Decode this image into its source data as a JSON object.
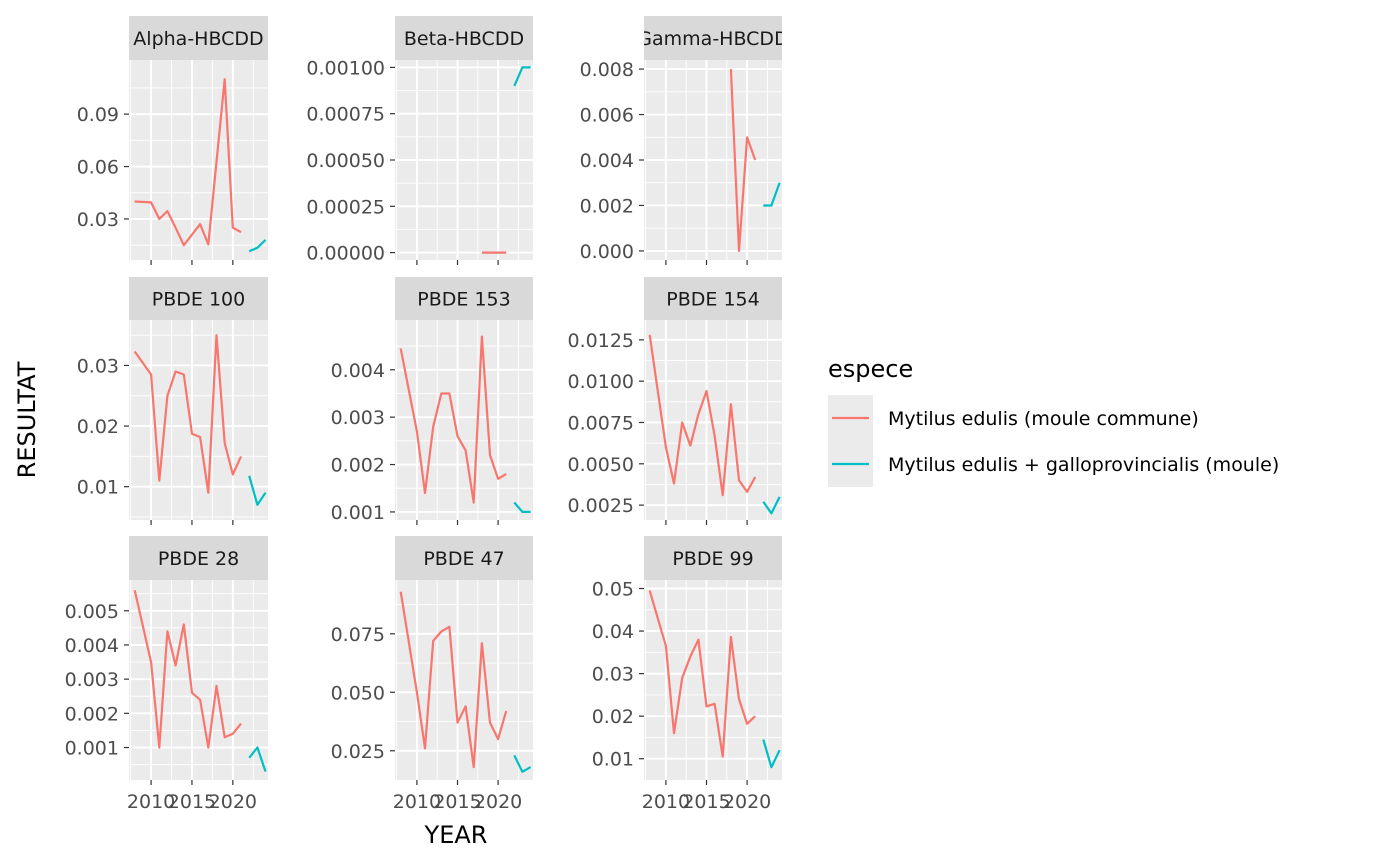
{
  "colors": {
    "series_1": "#F8766D",
    "series_2": "#00BFC4",
    "panel_bg": "#EBEBEB",
    "strip_bg": "#D9D9D9",
    "grid": "#FFFFFF"
  },
  "chart_data": {
    "type": "line",
    "xlabel": "YEAR",
    "ylabel": "RESULTAT",
    "x_ticks": [
      2010,
      2015,
      2020
    ],
    "xlim": [
      2007.3,
      2024.3
    ],
    "legend": {
      "title": "espece",
      "position": "right",
      "entries": [
        "Mytilus edulis (moule commune)",
        "Mytilus edulis + galloprovincialis (moule)"
      ]
    },
    "facet_scales": "free_y",
    "panels": [
      {
        "title": "Alpha-HBCDD",
        "ylim": [
          0.0065,
          0.121
        ],
        "y_ticks": [
          0.03,
          0.06,
          0.09
        ],
        "y_tick_labels": [
          "0.03",
          "0.06",
          "0.09"
        ],
        "series": [
          {
            "name": "Mytilus edulis (moule commune)",
            "x": [
              2008,
              2010,
              2011,
              2012,
              2013,
              2014,
              2016,
              2017,
              2019,
              2020,
              2021
            ],
            "y": [
              0.04,
              0.0395,
              0.03,
              0.0345,
              0.025,
              0.015,
              0.027,
              0.0155,
              0.11,
              0.025,
              0.0225
            ]
          },
          {
            "name": "Mytilus edulis + galloprovincialis (moule)",
            "x": [
              2022,
              2023,
              2024
            ],
            "y": [
              0.0115,
              0.0135,
              0.018
            ]
          }
        ]
      },
      {
        "title": "Beta-HBCDD",
        "ylim": [
          -4e-05,
          0.00104
        ],
        "y_ticks": [
          0,
          0.00025,
          0.0005,
          0.00075,
          0.001
        ],
        "y_tick_labels": [
          "0.00000",
          "0.00025",
          "0.00050",
          "0.00075",
          "0.00100"
        ],
        "series": [
          {
            "name": "Mytilus edulis (moule commune)",
            "x": [
              2018,
              2019,
              2020,
              2021
            ],
            "y": [
              0,
              0,
              0,
              0
            ]
          },
          {
            "name": "Mytilus edulis + galloprovincialis (moule)",
            "x": [
              2022,
              2023,
              2024
            ],
            "y": [
              0.0009,
              0.001,
              0.001
            ]
          }
        ]
      },
      {
        "title": "Gamma-HBCDD",
        "ylim": [
          -0.0004,
          0.0084
        ],
        "y_ticks": [
          0,
          0.002,
          0.004,
          0.006,
          0.008
        ],
        "y_tick_labels": [
          "0.000",
          "0.002",
          "0.004",
          "0.006",
          "0.008"
        ],
        "series": [
          {
            "name": "Mytilus edulis (moule commune)",
            "x": [
              2018,
              2019,
              2020,
              2021
            ],
            "y": [
              0.008,
              0,
              0.005,
              0.004
            ]
          },
          {
            "name": "Mytilus edulis + galloprovincialis (moule)",
            "x": [
              2022,
              2023,
              2024
            ],
            "y": [
              0.002,
              0.002,
              0.003
            ]
          }
        ]
      },
      {
        "title": "PBDE 100",
        "ylim": [
          0.0045,
          0.0375
        ],
        "y_ticks": [
          0.01,
          0.02,
          0.03
        ],
        "y_tick_labels": [
          "0.01",
          "0.02",
          "0.03"
        ],
        "series": [
          {
            "name": "Mytilus edulis (moule commune)",
            "x": [
              2008,
              2010,
              2011,
              2012,
              2013,
              2014,
              2015,
              2016,
              2017,
              2018,
              2019,
              2020,
              2021
            ],
            "y": [
              0.0323,
              0.0285,
              0.011,
              0.025,
              0.029,
              0.0285,
              0.0187,
              0.0182,
              0.009,
              0.035,
              0.0172,
              0.012,
              0.015
            ]
          },
          {
            "name": "Mytilus edulis + galloprovincialis (moule)",
            "x": [
              2022,
              2023,
              2024
            ],
            "y": [
              0.0118,
              0.007,
              0.009
            ]
          }
        ]
      },
      {
        "title": "PBDE 153",
        "ylim": [
          0.00083,
          0.00505
        ],
        "y_ticks": [
          0.001,
          0.002,
          0.003,
          0.004
        ],
        "y_tick_labels": [
          "0.001",
          "0.002",
          "0.003",
          "0.004"
        ],
        "series": [
          {
            "name": "Mytilus edulis (moule commune)",
            "x": [
              2008,
              2010,
              2011,
              2012,
              2013,
              2014,
              2015,
              2016,
              2017,
              2018,
              2019,
              2020,
              2021
            ],
            "y": [
              0.00445,
              0.0027,
              0.0014,
              0.0028,
              0.0035,
              0.0035,
              0.0026,
              0.0023,
              0.0012,
              0.0047,
              0.0022,
              0.0017,
              0.0018
            ]
          },
          {
            "name": "Mytilus edulis + galloprovincialis (moule)",
            "x": [
              2022,
              2023,
              2024
            ],
            "y": [
              0.0012,
              0.001,
              0.001
            ]
          }
        ]
      },
      {
        "title": "PBDE 154",
        "ylim": [
          0.0016,
          0.0137
        ],
        "y_ticks": [
          0.0025,
          0.005,
          0.0075,
          0.01,
          0.0125
        ],
        "y_tick_labels": [
          "0.0025",
          "0.0050",
          "0.0075",
          "0.0100",
          "0.0125"
        ],
        "series": [
          {
            "name": "Mytilus edulis (moule commune)",
            "x": [
              2008,
              2010,
              2011,
              2012,
              2013,
              2014,
              2015,
              2016,
              2017,
              2018,
              2019,
              2020,
              2021
            ],
            "y": [
              0.0128,
              0.006,
              0.0038,
              0.0075,
              0.0061,
              0.008,
              0.0094,
              0.0067,
              0.0031,
              0.0086,
              0.004,
              0.0033,
              0.0042
            ]
          },
          {
            "name": "Mytilus edulis + galloprovincialis (moule)",
            "x": [
              2022,
              2023,
              2024
            ],
            "y": [
              0.0027,
              0.002,
              0.003
            ]
          }
        ]
      },
      {
        "title": "PBDE 28",
        "ylim": [
          5e-05,
          0.0059
        ],
        "y_ticks": [
          0.001,
          0.002,
          0.003,
          0.004,
          0.005
        ],
        "y_tick_labels": [
          "0.001",
          "0.002",
          "0.003",
          "0.004",
          "0.005"
        ],
        "series": [
          {
            "name": "Mytilus edulis (moule commune)",
            "x": [
              2008,
              2010,
              2011,
              2012,
              2013,
              2014,
              2015,
              2016,
              2017,
              2018,
              2019,
              2020,
              2021
            ],
            "y": [
              0.0056,
              0.0035,
              0.001,
              0.0044,
              0.0034,
              0.0046,
              0.0026,
              0.0024,
              0.001,
              0.0028,
              0.0013,
              0.0014,
              0.0017
            ]
          },
          {
            "name": "Mytilus edulis + galloprovincialis (moule)",
            "x": [
              2022,
              2023,
              2024
            ],
            "y": [
              0.0007,
              0.001,
              0.0003
            ]
          }
        ]
      },
      {
        "title": "PBDE 47",
        "ylim": [
          0.0125,
          0.098
        ],
        "y_ticks": [
          0.025,
          0.05,
          0.075
        ],
        "y_tick_labels": [
          "0.025",
          "0.050",
          "0.075"
        ],
        "series": [
          {
            "name": "Mytilus edulis (moule commune)",
            "x": [
              2008,
              2010,
              2011,
              2012,
              2013,
              2014,
              2015,
              2016,
              2017,
              2018,
              2019,
              2020,
              2021
            ],
            "y": [
              0.093,
              0.05,
              0.026,
              0.072,
              0.076,
              0.078,
              0.037,
              0.044,
              0.018,
              0.071,
              0.037,
              0.03,
              0.042
            ]
          },
          {
            "name": "Mytilus edulis + galloprovincialis (moule)",
            "x": [
              2022,
              2023,
              2024
            ],
            "y": [
              0.023,
              0.016,
              0.018
            ]
          }
        ]
      },
      {
        "title": "PBDE 99",
        "ylim": [
          0.005,
          0.052
        ],
        "y_ticks": [
          0.01,
          0.02,
          0.03,
          0.04,
          0.05
        ],
        "y_tick_labels": [
          "0.01",
          "0.02",
          "0.03",
          "0.04",
          "0.05"
        ],
        "series": [
          {
            "name": "Mytilus edulis (moule commune)",
            "x": [
              2008,
              2010,
              2011,
              2012,
              2013,
              2014,
              2015,
              2016,
              2017,
              2018,
              2019,
              2020,
              2021
            ],
            "y": [
              0.0495,
              0.0365,
              0.016,
              0.029,
              0.034,
              0.038,
              0.0223,
              0.0229,
              0.0105,
              0.0386,
              0.024,
              0.0182,
              0.02
            ]
          },
          {
            "name": "Mytilus edulis + galloprovincialis (moule)",
            "x": [
              2022,
              2023,
              2024
            ],
            "y": [
              0.0145,
              0.008,
              0.012
            ]
          }
        ]
      }
    ]
  }
}
